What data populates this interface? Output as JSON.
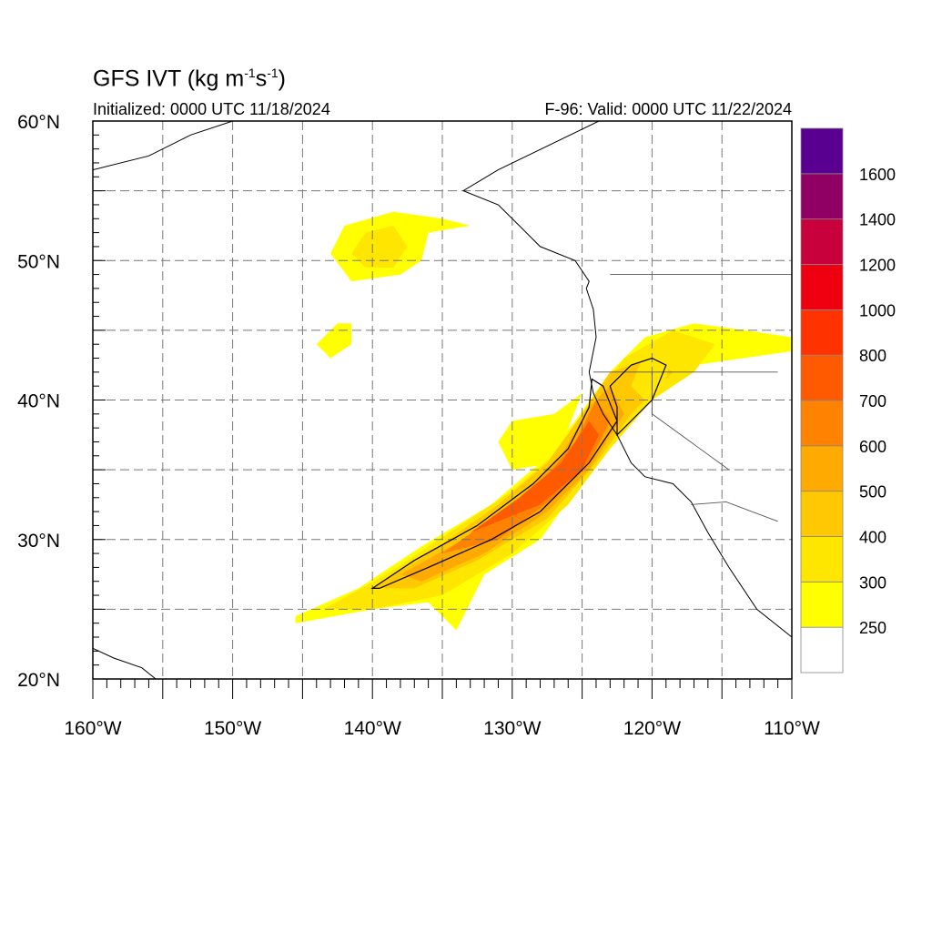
{
  "header": {
    "title_main": "GFS IVT (kg m",
    "title_sup1": "-1",
    "title_mid": "s",
    "title_sup2": "-1",
    "title_end": ")",
    "initialized": "Initialized: 0000 UTC 11/18/2024",
    "valid": "F-96: Valid: 0000 UTC 11/22/2024"
  },
  "axes": {
    "lat_labels": [
      {
        "value": 60,
        "text": "60°N"
      },
      {
        "value": 50,
        "text": "50°N"
      },
      {
        "value": 40,
        "text": "40°N"
      },
      {
        "value": 30,
        "text": "30°N"
      },
      {
        "value": 20,
        "text": "20°N"
      }
    ],
    "lon_labels": [
      {
        "value": -160,
        "text": "160°W"
      },
      {
        "value": -150,
        "text": "150°W"
      },
      {
        "value": -140,
        "text": "140°W"
      },
      {
        "value": -130,
        "text": "130°W"
      },
      {
        "value": -120,
        "text": "120°W"
      },
      {
        "value": -110,
        "text": "110°W"
      }
    ],
    "lon_range": [
      -160,
      -110
    ],
    "lat_range": [
      20,
      60
    ],
    "grid": true
  },
  "colorbar": {
    "levels": [
      {
        "label": "",
        "color": "#ffffff"
      },
      {
        "label": "250",
        "color": "#ffff00"
      },
      {
        "label": "300",
        "color": "#ffe600"
      },
      {
        "label": "400",
        "color": "#ffc800"
      },
      {
        "label": "500",
        "color": "#ffaa00"
      },
      {
        "label": "600",
        "color": "#ff8200"
      },
      {
        "label": "700",
        "color": "#ff5a00"
      },
      {
        "label": "800",
        "color": "#ff3200"
      },
      {
        "label": "1000",
        "color": "#ee0010"
      },
      {
        "label": "1200",
        "color": "#c8003c"
      },
      {
        "label": "1400",
        "color": "#900064"
      },
      {
        "label": "1600",
        "color": "#5a0090"
      }
    ]
  },
  "chart_data": {
    "type": "heatmap",
    "variable": "IVT",
    "units": "kg m-1 s-1",
    "features": [
      {
        "name": "atmospheric-river-outer",
        "level": "250",
        "lonlat": [
          [
            -145.5,
            24.5
          ],
          [
            -141.0,
            26.5
          ],
          [
            -136.5,
            29.5
          ],
          [
            -131.5,
            32.5
          ],
          [
            -128.0,
            35.5
          ],
          [
            -125.5,
            38.5
          ],
          [
            -123.0,
            42.0
          ],
          [
            -120.5,
            44.5
          ],
          [
            -117.0,
            45.5
          ],
          [
            -112.0,
            44.8
          ],
          [
            -110.0,
            44.5
          ],
          [
            -110.0,
            43.5
          ],
          [
            -117.0,
            42.5
          ],
          [
            -120.0,
            40.5
          ],
          [
            -123.0,
            37.5
          ],
          [
            -125.5,
            33.5
          ],
          [
            -128.0,
            30.0
          ],
          [
            -132.0,
            27.5
          ],
          [
            -134.0,
            23.5
          ],
          [
            -136.0,
            25.5
          ],
          [
            -140.0,
            25.0
          ],
          [
            -145.5,
            24.0
          ]
        ]
      },
      {
        "name": "atmospheric-river-north-lobe",
        "level": "250",
        "lonlat": [
          [
            -131.0,
            37.0
          ],
          [
            -130.0,
            38.5
          ],
          [
            -127.0,
            39.0
          ],
          [
            -125.0,
            40.5
          ],
          [
            -127.0,
            35.5
          ],
          [
            -130.0,
            35.0
          ]
        ]
      },
      {
        "name": "atmospheric-river-300",
        "level": "300",
        "lonlat": [
          [
            -143.5,
            25.0
          ],
          [
            -139.0,
            27.5
          ],
          [
            -134.5,
            30.5
          ],
          [
            -130.0,
            33.5
          ],
          [
            -126.5,
            36.5
          ],
          [
            -124.5,
            39.5
          ],
          [
            -122.0,
            43.0
          ],
          [
            -118.5,
            45.0
          ],
          [
            -115.5,
            44.0
          ],
          [
            -117.0,
            42.0
          ],
          [
            -120.0,
            40.0
          ],
          [
            -123.0,
            36.5
          ],
          [
            -126.0,
            32.5
          ],
          [
            -130.0,
            29.0
          ],
          [
            -135.0,
            26.0
          ],
          [
            -140.0,
            25.0
          ]
        ]
      },
      {
        "name": "atmospheric-river-400",
        "level": "400",
        "lonlat": [
          [
            -140.0,
            26.5
          ],
          [
            -136.0,
            29.0
          ],
          [
            -131.0,
            32.5
          ],
          [
            -127.5,
            35.5
          ],
          [
            -125.0,
            39.0
          ],
          [
            -123.0,
            42.0
          ],
          [
            -120.0,
            43.0
          ],
          [
            -118.5,
            42.0
          ],
          [
            -121.5,
            39.0
          ],
          [
            -124.0,
            35.5
          ],
          [
            -127.5,
            31.5
          ],
          [
            -132.5,
            28.5
          ],
          [
            -137.0,
            26.5
          ]
        ]
      },
      {
        "name": "atmospheric-river-500",
        "level": "500",
        "lonlat": [
          [
            -138.0,
            27.5
          ],
          [
            -133.5,
            30.0
          ],
          [
            -129.5,
            33.0
          ],
          [
            -126.5,
            36.0
          ],
          [
            -124.5,
            39.5
          ],
          [
            -123.0,
            41.0
          ],
          [
            -122.0,
            39.0
          ],
          [
            -124.5,
            35.0
          ],
          [
            -127.5,
            32.0
          ],
          [
            -132.0,
            29.0
          ],
          [
            -136.5,
            27.0
          ]
        ]
      },
      {
        "name": "atmospheric-river-600",
        "level": "600",
        "lonlat": [
          [
            -135.0,
            29.0
          ],
          [
            -131.5,
            31.5
          ],
          [
            -128.0,
            34.0
          ],
          [
            -125.5,
            37.0
          ],
          [
            -124.0,
            40.0
          ],
          [
            -123.0,
            38.5
          ],
          [
            -124.5,
            35.5
          ],
          [
            -127.0,
            33.0
          ],
          [
            -131.0,
            30.0
          ]
        ]
      },
      {
        "name": "atmospheric-river-700",
        "level": "700",
        "lonlat": [
          [
            -133.0,
            30.5
          ],
          [
            -129.5,
            33.0
          ],
          [
            -126.5,
            35.5
          ],
          [
            -124.5,
            38.5
          ],
          [
            -123.8,
            37.5
          ],
          [
            -125.0,
            35.0
          ],
          [
            -128.0,
            32.5
          ]
        ]
      },
      {
        "name": "gulf-of-alaska-blob",
        "level": "250",
        "lonlat": [
          [
            -143.0,
            50.5
          ],
          [
            -142.0,
            52.5
          ],
          [
            -138.5,
            53.5
          ],
          [
            -135.0,
            53.0
          ],
          [
            -133.0,
            52.5
          ],
          [
            -136.0,
            52.0
          ],
          [
            -136.5,
            50.0
          ],
          [
            -138.0,
            49.0
          ],
          [
            -141.5,
            48.5
          ]
        ]
      },
      {
        "name": "gulf-of-alaska-blob-core",
        "level": "300",
        "lonlat": [
          [
            -141.5,
            50.5
          ],
          [
            -140.5,
            52.0
          ],
          [
            -138.5,
            52.5
          ],
          [
            -137.5,
            51.0
          ],
          [
            -138.5,
            49.5
          ],
          [
            -140.5,
            49.5
          ]
        ]
      },
      {
        "name": "small-blob",
        "level": "250",
        "lonlat": [
          [
            -144.0,
            44.0
          ],
          [
            -142.5,
            45.5
          ],
          [
            -141.5,
            45.5
          ],
          [
            -141.5,
            44.0
          ],
          [
            -143.0,
            43.0
          ]
        ]
      },
      {
        "name": "inland-plume",
        "level": "300",
        "lonlat": [
          [
            -121.5,
            41.0
          ],
          [
            -120.5,
            43.5
          ],
          [
            -118.5,
            43.5
          ],
          [
            -119.0,
            41.5
          ],
          [
            -120.5,
            40.0
          ]
        ]
      }
    ],
    "contours": [
      {
        "name": "ivt-500-contour-west",
        "lonlat": [
          [
            -140.0,
            26.5
          ],
          [
            -137.0,
            28.5
          ],
          [
            -132.5,
            31.0
          ],
          [
            -128.5,
            34.0
          ],
          [
            -126.0,
            36.5
          ],
          [
            -124.5,
            39.5
          ],
          [
            -124.3,
            41.5
          ],
          [
            -123.5,
            41.0
          ],
          [
            -122.5,
            38.5
          ],
          [
            -124.5,
            35.5
          ],
          [
            -128.0,
            32.0
          ],
          [
            -131.5,
            30.0
          ],
          [
            -136.0,
            28.0
          ],
          [
            -139.5,
            26.5
          ]
        ]
      },
      {
        "name": "ivt-500-contour-inland",
        "lonlat": [
          [
            -123.0,
            41.0
          ],
          [
            -121.5,
            42.5
          ],
          [
            -120.0,
            43.0
          ],
          [
            -119.0,
            42.5
          ],
          [
            -120.0,
            40.0
          ],
          [
            -121.5,
            38.5
          ],
          [
            -122.5,
            37.5
          ],
          [
            -122.5,
            39.5
          ]
        ]
      }
    ],
    "coastlines": [
      {
        "name": "north-america-west-coast",
        "lonlat": [
          [
            -123.8,
            60.0
          ],
          [
            -131.0,
            56.5
          ],
          [
            -133.5,
            55.0
          ],
          [
            -131.0,
            54.0
          ],
          [
            -129.5,
            52.5
          ],
          [
            -128.0,
            51.0
          ],
          [
            -125.5,
            50.0
          ],
          [
            -124.5,
            48.5
          ],
          [
            -124.7,
            48.0
          ],
          [
            -124.2,
            46.5
          ],
          [
            -124.0,
            44.5
          ],
          [
            -124.5,
            42.0
          ],
          [
            -124.2,
            40.5
          ],
          [
            -123.5,
            39.0
          ],
          [
            -122.5,
            37.5
          ],
          [
            -121.5,
            35.5
          ],
          [
            -120.5,
            34.5
          ],
          [
            -118.5,
            34.0
          ],
          [
            -117.2,
            32.7
          ],
          [
            -116.0,
            30.5
          ],
          [
            -114.5,
            28.0
          ],
          [
            -112.5,
            25.0
          ],
          [
            -110.0,
            23.0
          ]
        ]
      },
      {
        "name": "alaska-coast",
        "lonlat": [
          [
            -160.0,
            56.5
          ],
          [
            -156.0,
            57.5
          ],
          [
            -153.0,
            59.0
          ],
          [
            -150.0,
            60.0
          ]
        ]
      },
      {
        "name": "hawaii",
        "lonlat": [
          [
            -160.0,
            22.2
          ],
          [
            -158.5,
            21.5
          ],
          [
            -156.5,
            20.8
          ],
          [
            -155.5,
            20.0
          ]
        ]
      }
    ],
    "borders": [
      {
        "name": "us-canada",
        "lonlat": [
          [
            -123.0,
            49.0
          ],
          [
            -110.0,
            49.0
          ]
        ]
      },
      {
        "name": "or-ca",
        "lonlat": [
          [
            -124.2,
            42.0
          ],
          [
            -117.0,
            42.0
          ],
          [
            -111.0,
            42.0
          ]
        ]
      },
      {
        "name": "ca-nv",
        "lonlat": [
          [
            -120.0,
            42.0
          ],
          [
            -120.0,
            39.0
          ],
          [
            -114.5,
            35.0
          ]
        ]
      },
      {
        "name": "us-mexico",
        "lonlat": [
          [
            -117.2,
            32.5
          ],
          [
            -114.7,
            32.7
          ],
          [
            -111.0,
            31.3
          ]
        ]
      }
    ]
  }
}
